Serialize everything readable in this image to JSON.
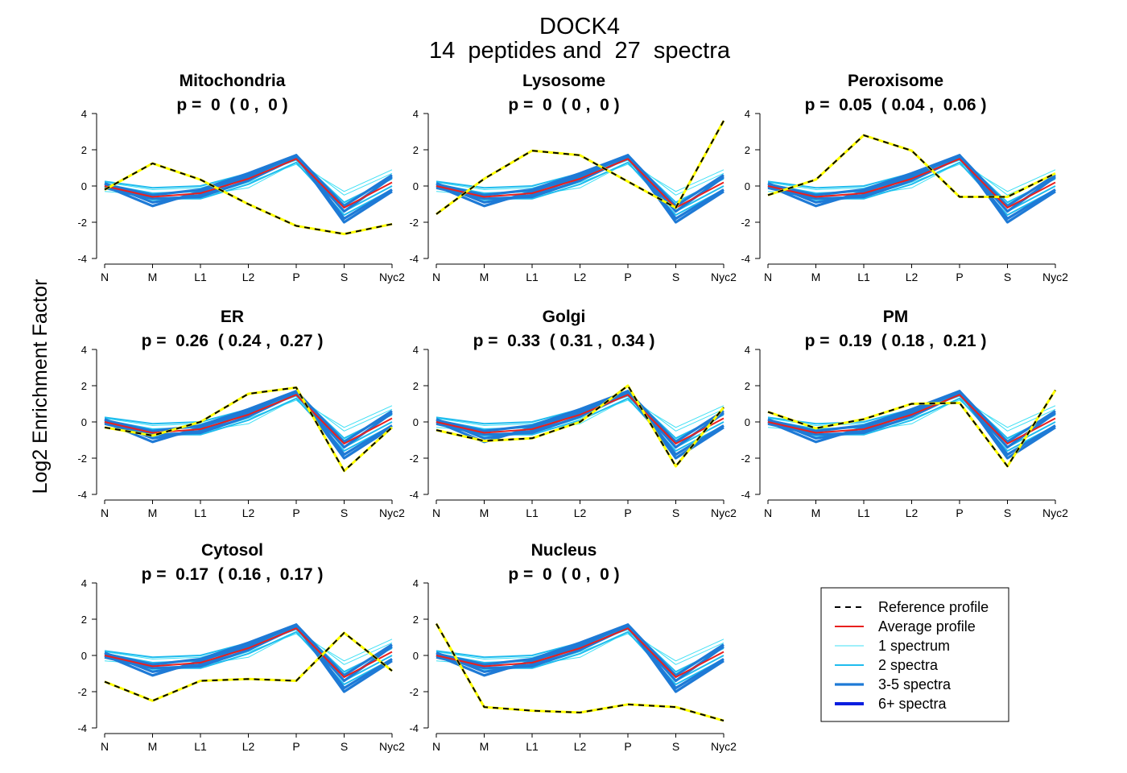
{
  "figure": {
    "title": "DOCK4",
    "subtitle": "14  peptides and  27  spectra",
    "ylabel": "Log2 Enrichment Factor"
  },
  "legend": [
    {
      "label": "Reference profile",
      "style": "reference",
      "color": "#000000"
    },
    {
      "label": "Average profile",
      "style": "average",
      "color": "#e8201e"
    },
    {
      "label": "1 spectrum",
      "style": "s1",
      "color": "#3fe0f5"
    },
    {
      "label": "2 spectra",
      "style": "s2",
      "color": "#1fbcee"
    },
    {
      "label": "3-5 spectra",
      "style": "s3",
      "color": "#1e7ad6"
    },
    {
      "label": "6+ spectra",
      "style": "s6",
      "color": "#0a1ee0"
    }
  ],
  "colors": {
    "reference_dash": "#000000",
    "reference_under": "#ffff00",
    "average": "#e8201e",
    "spectrum1": "#3fe0f5",
    "spectrum2": "#1fbcee",
    "spectrum3_5": "#1e7ad6",
    "spectrum6": "#0a1ee0"
  },
  "chart_data": [
    {
      "type": "line",
      "panel": "Mitochondria",
      "title": "Mitochondria",
      "subtitle": "p =  0  ( 0 ,  0 )",
      "x": [
        "N",
        "M",
        "L1",
        "L2",
        "P",
        "S",
        "Nyc2"
      ],
      "ylim": [
        -4,
        4
      ],
      "yticks": [
        4,
        2,
        0,
        -2,
        -4
      ],
      "series": [
        {
          "name": "Reference profile",
          "values": [
            -0.2,
            1.25,
            0.35,
            -1.0,
            -2.2,
            -2.65,
            -2.1
          ]
        },
        {
          "name": "Average profile",
          "values": [
            0.0,
            -0.6,
            -0.4,
            0.4,
            1.5,
            -1.2,
            0.2
          ]
        }
      ]
    },
    {
      "type": "line",
      "panel": "Lysosome",
      "title": "Lysosome",
      "subtitle": "p =  0  ( 0 ,  0 )",
      "x": [
        "N",
        "M",
        "L1",
        "L2",
        "P",
        "S",
        "Nyc2"
      ],
      "ylim": [
        -4,
        4
      ],
      "yticks": [
        4,
        2,
        0,
        -2,
        -4
      ],
      "series": [
        {
          "name": "Reference profile",
          "values": [
            -1.55,
            0.4,
            1.95,
            1.7,
            0.25,
            -1.2,
            3.6
          ]
        },
        {
          "name": "Average profile",
          "values": [
            0.0,
            -0.6,
            -0.4,
            0.4,
            1.5,
            -1.2,
            0.2
          ]
        }
      ]
    },
    {
      "type": "line",
      "panel": "Peroxisome",
      "title": "Peroxisome",
      "subtitle": "p =  0.05  ( 0.04 ,  0.06 )",
      "x": [
        "N",
        "M",
        "L1",
        "L2",
        "P",
        "S",
        "Nyc2"
      ],
      "ylim": [
        -4,
        4
      ],
      "yticks": [
        4,
        2,
        0,
        -2,
        -4
      ],
      "series": [
        {
          "name": "Reference profile",
          "values": [
            -0.5,
            0.35,
            2.8,
            1.95,
            -0.6,
            -0.6,
            0.7
          ]
        },
        {
          "name": "Average profile",
          "values": [
            0.0,
            -0.6,
            -0.4,
            0.4,
            1.5,
            -1.2,
            0.2
          ]
        }
      ]
    },
    {
      "type": "line",
      "panel": "ER",
      "title": "ER",
      "subtitle": "p =  0.26  ( 0.24 ,  0.27 )",
      "x": [
        "N",
        "M",
        "L1",
        "L2",
        "P",
        "S",
        "Nyc2"
      ],
      "ylim": [
        -4,
        4
      ],
      "yticks": [
        4,
        2,
        0,
        -2,
        -4
      ],
      "series": [
        {
          "name": "Reference profile",
          "values": [
            -0.3,
            -0.75,
            0.0,
            1.55,
            1.9,
            -2.7,
            -0.3
          ]
        },
        {
          "name": "Average profile",
          "values": [
            0.0,
            -0.6,
            -0.4,
            0.4,
            1.5,
            -1.2,
            0.2
          ]
        }
      ]
    },
    {
      "type": "line",
      "panel": "Golgi",
      "title": "Golgi",
      "subtitle": "p =  0.33  ( 0.31 ,  0.34 )",
      "x": [
        "N",
        "M",
        "L1",
        "L2",
        "P",
        "S",
        "Nyc2"
      ],
      "ylim": [
        -4,
        4
      ],
      "yticks": [
        4,
        2,
        0,
        -2,
        -4
      ],
      "series": [
        {
          "name": "Reference profile",
          "values": [
            -0.45,
            -1.05,
            -0.9,
            0.0,
            2.0,
            -2.45,
            0.8
          ]
        },
        {
          "name": "Average profile",
          "values": [
            0.0,
            -0.6,
            -0.4,
            0.4,
            1.5,
            -1.2,
            0.2
          ]
        }
      ]
    },
    {
      "type": "line",
      "panel": "PM",
      "title": "PM",
      "subtitle": "p =  0.19  ( 0.18 ,  0.21 )",
      "x": [
        "N",
        "M",
        "L1",
        "L2",
        "P",
        "S",
        "Nyc2"
      ],
      "ylim": [
        -4,
        4
      ],
      "yticks": [
        4,
        2,
        0,
        -2,
        -4
      ],
      "series": [
        {
          "name": "Reference profile",
          "values": [
            0.55,
            -0.35,
            0.15,
            1.0,
            1.05,
            -2.45,
            1.75
          ]
        },
        {
          "name": "Average profile",
          "values": [
            0.0,
            -0.6,
            -0.4,
            0.4,
            1.5,
            -1.2,
            0.2
          ]
        }
      ]
    },
    {
      "type": "line",
      "panel": "Cytosol",
      "title": "Cytosol",
      "subtitle": "p =  0.17  ( 0.16 ,  0.17 )",
      "x": [
        "N",
        "M",
        "L1",
        "L2",
        "P",
        "S",
        "Nyc2"
      ],
      "ylim": [
        -4,
        4
      ],
      "yticks": [
        4,
        2,
        0,
        -2,
        -4
      ],
      "series": [
        {
          "name": "Reference profile",
          "values": [
            -1.45,
            -2.5,
            -1.4,
            -1.3,
            -1.4,
            1.25,
            -0.85
          ]
        },
        {
          "name": "Average profile",
          "values": [
            0.0,
            -0.6,
            -0.4,
            0.4,
            1.5,
            -1.2,
            0.2
          ]
        }
      ]
    },
    {
      "type": "line",
      "panel": "Nucleus",
      "title": "Nucleus",
      "subtitle": "p =  0  ( 0 ,  0 )",
      "x": [
        "N",
        "M",
        "L1",
        "L2",
        "P",
        "S",
        "Nyc2"
      ],
      "ylim": [
        -4,
        4
      ],
      "yticks": [
        4,
        2,
        0,
        -2,
        -4
      ],
      "series": [
        {
          "name": "Reference profile",
          "values": [
            1.75,
            -2.85,
            -3.05,
            -3.15,
            -2.7,
            -2.85,
            -3.6
          ]
        },
        {
          "name": "Average profile",
          "values": [
            0.0,
            -0.6,
            -0.4,
            0.4,
            1.5,
            -1.2,
            0.2
          ]
        }
      ]
    }
  ],
  "spectra_profiles": [
    {
      "kind": "s1",
      "values": [
        -0.3,
        -0.5,
        -0.5,
        -0.1,
        1.3,
        -0.3,
        0.9
      ]
    },
    {
      "kind": "s1",
      "values": [
        0.2,
        -0.2,
        -0.1,
        0.6,
        1.5,
        -0.5,
        0.7
      ]
    },
    {
      "kind": "s1",
      "values": [
        -0.1,
        -0.8,
        -0.6,
        0.2,
        1.2,
        -1.0,
        0.5
      ]
    },
    {
      "kind": "s2",
      "values": [
        0.25,
        -0.1,
        0.0,
        0.7,
        1.6,
        -0.9,
        0.4
      ]
    },
    {
      "kind": "s2",
      "values": [
        0.1,
        -0.4,
        -0.3,
        0.5,
        1.45,
        -1.4,
        0.0
      ]
    },
    {
      "kind": "s2",
      "values": [
        0.0,
        -0.7,
        -0.7,
        0.1,
        1.3,
        -1.6,
        -0.2
      ]
    },
    {
      "kind": "s3",
      "values": [
        0.15,
        -0.9,
        -0.5,
        0.5,
        1.7,
        -1.8,
        -0.2
      ]
    },
    {
      "kind": "s3",
      "values": [
        0.0,
        -1.1,
        -0.3,
        0.6,
        1.65,
        -2.0,
        -0.3
      ]
    },
    {
      "kind": "s3",
      "values": [
        0.1,
        -0.5,
        -0.2,
        0.7,
        1.7,
        -1.1,
        0.6
      ]
    },
    {
      "kind": "s3",
      "values": [
        -0.1,
        -0.7,
        -0.6,
        0.3,
        1.55,
        -1.4,
        0.5
      ]
    }
  ]
}
